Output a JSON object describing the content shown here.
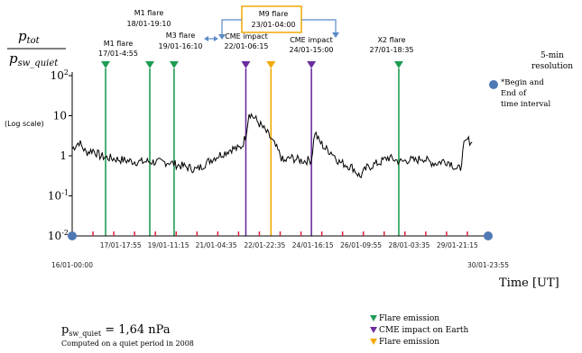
{
  "chart_data": {
    "type": "line",
    "title": "",
    "ylabel": {
      "numerator_main": "p",
      "numerator_sub": "tot",
      "denominator_main": "p",
      "denominator_sub": "sw_quiet",
      "scale": "(Log scale)"
    },
    "xlabel": "Time [UT]",
    "resolution": [
      "5-min",
      "resolution"
    ],
    "y_scale": "log",
    "ylim": [
      0.01,
      100
    ],
    "y_ticks": [
      {
        "value": 100,
        "base": "10",
        "exp": "2"
      },
      {
        "value": 10,
        "base": "10",
        "exp": ""
      },
      {
        "value": 1,
        "base": "1",
        "exp": ""
      },
      {
        "value": 0.1,
        "base": "10",
        "exp": "-1"
      },
      {
        "value": 0.01,
        "base": "10",
        "exp": "-2"
      }
    ],
    "xlim": [
      "16/01-00:00",
      "30/01-23:55"
    ],
    "x_tick_labels": [
      {
        "label": "17/01-17:55",
        "row": 1
      },
      {
        "label": "19/01-11:15",
        "row": 1
      },
      {
        "label": "21/01-04:35",
        "row": 1
      },
      {
        "label": "22/01-22:35",
        "row": 1
      },
      {
        "label": "24/01-16:15",
        "row": 1
      },
      {
        "label": "26/01-09:55",
        "row": 1
      },
      {
        "label": "28/01-03:35",
        "row": 1
      },
      {
        "label": "29/01-21:15",
        "row": 1
      },
      {
        "label": "16/01-00:00",
        "row": 2
      },
      {
        "label": "30/01-23:55",
        "row": 2
      }
    ],
    "interval_markers": [
      "16/01-00:00",
      "30/01-23:55"
    ],
    "events": [
      {
        "type": "Flare emission",
        "color": "#1f9d55",
        "label": [
          "M1 flare",
          "17/01-4:55"
        ]
      },
      {
        "type": "Flare emission",
        "color": "#1f9d55",
        "label": [
          "M1 flare",
          "18/01-19:10"
        ]
      },
      {
        "type": "Flare emission",
        "color": "#1f9d55",
        "label": [
          "M3 flare",
          "19/01-16:10"
        ]
      },
      {
        "type": "CME impact on Earth",
        "color": "#6b2e9e",
        "label": [
          "CME impact",
          "22/01-06:15"
        ]
      },
      {
        "type": "Flare emission",
        "color": "#f2a900",
        "label": [
          "M9 flare",
          "23/01-04:00"
        ]
      },
      {
        "type": "CME impact on Earth",
        "color": "#6b2e9e",
        "label": [
          "CME impact",
          "24/01-15:00"
        ]
      },
      {
        "type": "Flare emission",
        "color": "#1f9d55",
        "label": [
          "X2 flare",
          "27/01-18:35"
        ]
      }
    ],
    "series": [
      {
        "color": "#000000",
        "points": [
          [
            "16/01-00:00",
            1.5
          ],
          [
            "16/01-06:00",
            2.2
          ],
          [
            "16/01-12:00",
            1.2
          ],
          [
            "16/01-18:00",
            1.4
          ],
          [
            "17/01-00:00",
            1.0
          ],
          [
            "17/01-06:00",
            0.9
          ],
          [
            "17/01-12:00",
            0.85
          ],
          [
            "17/01-18:00",
            0.8
          ],
          [
            "18/01-00:00",
            0.75
          ],
          [
            "18/01-06:00",
            0.72
          ],
          [
            "18/01-12:00",
            0.7
          ],
          [
            "18/01-18:00",
            0.72
          ],
          [
            "19/01-00:00",
            0.7
          ],
          [
            "19/01-06:00",
            0.68
          ],
          [
            "19/01-12:00",
            0.7
          ],
          [
            "19/01-18:00",
            0.6
          ],
          [
            "20/01-00:00",
            0.55
          ],
          [
            "20/01-06:00",
            0.5
          ],
          [
            "20/01-12:00",
            0.45
          ],
          [
            "20/01-18:00",
            0.6
          ],
          [
            "21/01-00:00",
            0.8
          ],
          [
            "21/01-06:00",
            1.0
          ],
          [
            "21/01-12:00",
            1.2
          ],
          [
            "21/01-18:00",
            1.5
          ],
          [
            "22/01-00:00",
            1.5
          ],
          [
            "22/01-03:00",
            1.8
          ],
          [
            "22/01-06:00",
            3.0
          ],
          [
            "22/01-09:00",
            12.0
          ],
          [
            "22/01-15:00",
            8.0
          ],
          [
            "22/01-21:00",
            5.0
          ],
          [
            "23/01-03:00",
            3.0
          ],
          [
            "23/01-09:00",
            1.5
          ],
          [
            "23/01-15:00",
            0.7
          ],
          [
            "23/01-21:00",
            0.9
          ],
          [
            "24/01-03:00",
            0.8
          ],
          [
            "24/01-09:00",
            0.75
          ],
          [
            "24/01-15:00",
            0.8
          ],
          [
            "24/01-18:00",
            4.0
          ],
          [
            "24/01-21:00",
            2.5
          ],
          [
            "25/01-03:00",
            1.5
          ],
          [
            "25/01-09:00",
            1.2
          ],
          [
            "25/01-15:00",
            0.7
          ],
          [
            "25/01-21:00",
            0.6
          ],
          [
            "26/01-03:00",
            0.5
          ],
          [
            "26/01-09:00",
            0.3
          ],
          [
            "26/01-15:00",
            0.5
          ],
          [
            "26/01-21:00",
            0.6
          ],
          [
            "27/01-03:00",
            0.7
          ],
          [
            "27/01-09:00",
            0.9
          ],
          [
            "27/01-15:00",
            0.8
          ],
          [
            "27/01-21:00",
            0.7
          ],
          [
            "28/01-03:00",
            0.8
          ],
          [
            "28/01-09:00",
            0.75
          ],
          [
            "28/01-15:00",
            0.9
          ],
          [
            "28/01-21:00",
            0.7
          ],
          [
            "29/01-03:00",
            0.65
          ],
          [
            "29/01-09:00",
            0.75
          ],
          [
            "29/01-15:00",
            0.7
          ],
          [
            "29/01-21:00",
            0.45
          ],
          [
            "30/01-00:00",
            0.5
          ],
          [
            "30/01-03:00",
            1.8
          ],
          [
            "30/01-06:00",
            2.5
          ],
          [
            "30/01-10:00",
            2.2
          ]
        ]
      }
    ],
    "legend": {
      "placement": "bottom-right",
      "items": [
        {
          "label": "Flare emission",
          "color": "#1f9d55"
        },
        {
          "label": "CME impact on Earth",
          "color": "#6b2e9e"
        },
        {
          "label": "Flare emission",
          "color": "#f2a900"
        }
      ]
    },
    "side_note": [
      "*Begin and",
      "End of",
      "time interval"
    ],
    "footnote": {
      "main": "p",
      "sub": "sw_quiet",
      "value": "= 1,64 nPa",
      "detail": "Computed on a quiet period in 2008"
    },
    "grid": false
  }
}
